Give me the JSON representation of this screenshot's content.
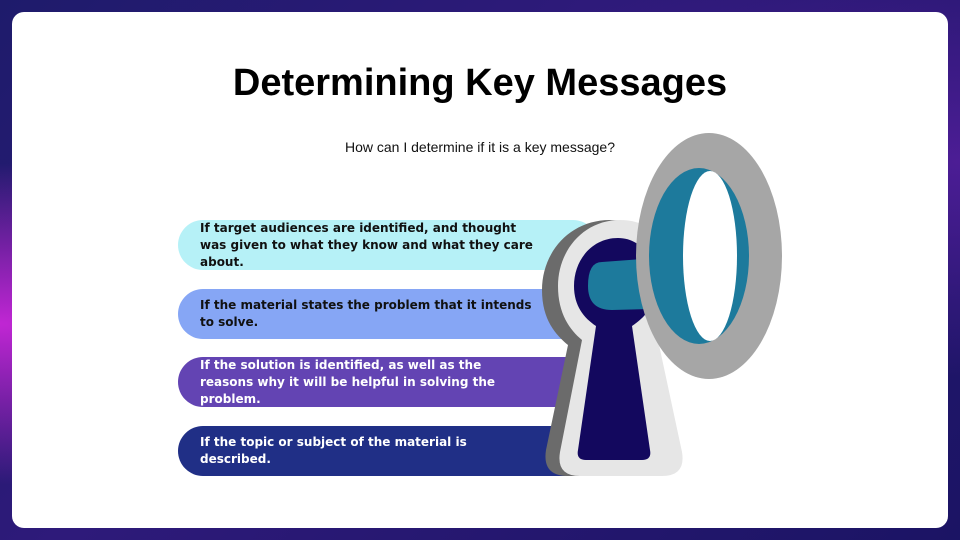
{
  "slide": {
    "title": "Determining Key Messages",
    "subtitle": "How can I determine if it is a key message?"
  },
  "criteria": [
    {
      "text": "If target audiences are identified, and thought was given to what they know and what they care about."
    },
    {
      "text": "If the material states the problem that it intends to solve."
    },
    {
      "text": "If the solution is identified, as well as the reasons why it will be helpful in solving the problem."
    },
    {
      "text": "If the topic or subject of the material is described."
    }
  ],
  "colors": {
    "pill_1": "#b6f1f7",
    "pill_2": "#86a6f5",
    "pill_3": "#6344b3",
    "pill_4": "#202f86",
    "keyhole_dark": "#13085e",
    "keyhole_teal": "#1d7a9c",
    "ring_gray": "#a6a6a6"
  },
  "icons": {
    "illustration": "keyhole-with-key-ring-icon"
  }
}
